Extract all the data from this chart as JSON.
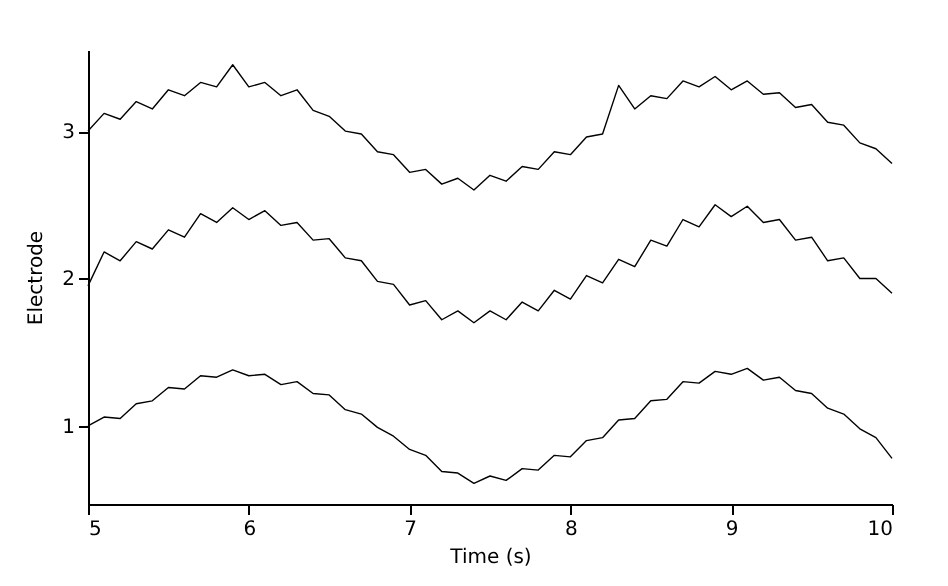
{
  "chart_data": {
    "type": "line",
    "xlabel": "Time (s)",
    "ylabel": "Electrode",
    "x": [
      5.0,
      5.1,
      5.2,
      5.3,
      5.4,
      5.5,
      5.6,
      5.7,
      5.8,
      5.9,
      6.0,
      6.1,
      6.2,
      6.3,
      6.4,
      6.5,
      6.6,
      6.7,
      6.8,
      6.9,
      7.0,
      7.1,
      7.2,
      7.3,
      7.4,
      7.5,
      7.6,
      7.7,
      7.8,
      7.9,
      8.0,
      8.1,
      8.2,
      8.3,
      8.4,
      8.5,
      8.6,
      8.7,
      8.8,
      8.9,
      9.0,
      9.1,
      9.2,
      9.3,
      9.4,
      9.5,
      9.6,
      9.7,
      9.8,
      9.9,
      10.0
    ],
    "series": [
      {
        "color": "#000000",
        "values": [
          1.0,
          1.06,
          1.05,
          1.15,
          1.17,
          1.26,
          1.25,
          1.34,
          1.33,
          1.38,
          1.34,
          1.35,
          1.28,
          1.3,
          1.22,
          1.21,
          1.11,
          1.08,
          0.99,
          0.93,
          0.84,
          0.8,
          0.69,
          0.68,
          0.61,
          0.66,
          0.63,
          0.71,
          0.7,
          0.8,
          0.79,
          0.9,
          0.92,
          1.04,
          1.05,
          1.17,
          1.18,
          1.3,
          1.29,
          1.37,
          1.35,
          1.39,
          1.31,
          1.33,
          1.24,
          1.22,
          1.12,
          1.08,
          0.98,
          0.92,
          0.78
        ]
      },
      {
        "color": "#000000",
        "values": [
          1.95,
          2.18,
          2.12,
          2.25,
          2.2,
          2.33,
          2.28,
          2.44,
          2.38,
          2.48,
          2.4,
          2.46,
          2.36,
          2.38,
          2.26,
          2.27,
          2.14,
          2.12,
          1.98,
          1.96,
          1.82,
          1.85,
          1.72,
          1.78,
          1.7,
          1.78,
          1.72,
          1.84,
          1.78,
          1.92,
          1.86,
          2.02,
          1.97,
          2.13,
          2.08,
          2.26,
          2.22,
          2.4,
          2.35,
          2.5,
          2.42,
          2.49,
          2.38,
          2.4,
          2.26,
          2.28,
          2.12,
          2.14,
          2.0,
          2.0,
          1.9
        ]
      },
      {
        "color": "#000000",
        "values": [
          3.0,
          3.12,
          3.08,
          3.2,
          3.15,
          3.28,
          3.24,
          3.33,
          3.3,
          3.45,
          3.3,
          3.33,
          3.24,
          3.28,
          3.14,
          3.1,
          3.0,
          2.98,
          2.86,
          2.84,
          2.72,
          2.74,
          2.64,
          2.68,
          2.6,
          2.7,
          2.66,
          2.76,
          2.74,
          2.86,
          2.84,
          2.96,
          2.98,
          3.31,
          3.15,
          3.24,
          3.22,
          3.34,
          3.3,
          3.37,
          3.28,
          3.34,
          3.25,
          3.26,
          3.16,
          3.18,
          3.06,
          3.04,
          2.92,
          2.88,
          2.78
        ]
      }
    ],
    "xlim": [
      5,
      10
    ],
    "xticks": [
      5,
      6,
      7,
      8,
      9,
      10
    ],
    "ylim": [
      0.47,
      3.55
    ],
    "yticks": [
      1,
      2,
      3
    ],
    "grid": false,
    "legend": false
  }
}
